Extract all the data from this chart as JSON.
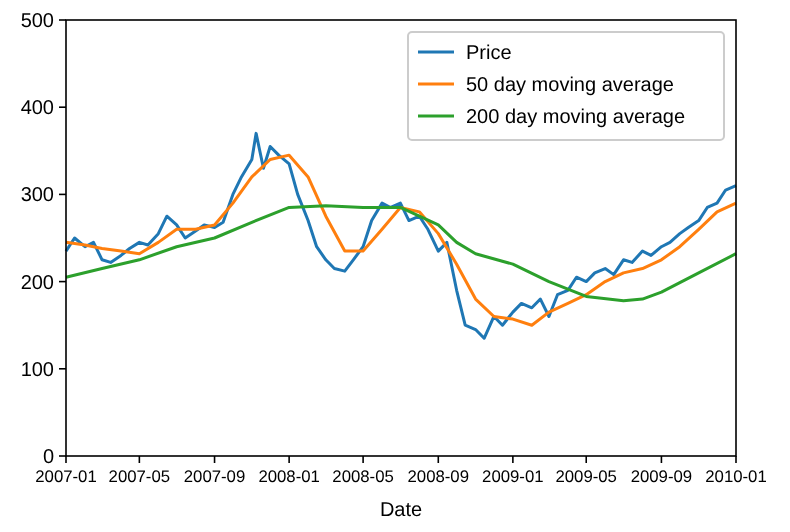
{
  "chart_data": {
    "type": "line",
    "xlabel": "Date",
    "xlim": [
      "2007-01",
      "2010-01"
    ],
    "xticks": [
      "2007-01",
      "2007-05",
      "2007-09",
      "2008-01",
      "2008-05",
      "2008-09",
      "2009-01",
      "2009-05",
      "2009-09",
      "2010-01"
    ],
    "ylim": [
      0,
      500
    ],
    "yticks": [
      0,
      100,
      200,
      300,
      400,
      500
    ],
    "legend": "top right",
    "grid": false,
    "series": [
      {
        "name": "Price",
        "color": "#1f77b4",
        "x": [
          "2007-01-01",
          "2007-01-15",
          "2007-02-01",
          "2007-02-15",
          "2007-03-01",
          "2007-03-15",
          "2007-04-01",
          "2007-04-15",
          "2007-05-01",
          "2007-05-15",
          "2007-06-01",
          "2007-06-15",
          "2007-07-01",
          "2007-07-15",
          "2007-08-01",
          "2007-08-15",
          "2007-09-01",
          "2007-09-15",
          "2007-10-01",
          "2007-10-15",
          "2007-11-01",
          "2007-11-08",
          "2007-11-20",
          "2007-12-01",
          "2007-12-15",
          "2008-01-01",
          "2008-01-15",
          "2008-02-01",
          "2008-02-15",
          "2008-03-01",
          "2008-03-15",
          "2008-04-01",
          "2008-04-15",
          "2008-05-01",
          "2008-05-15",
          "2008-06-01",
          "2008-06-15",
          "2008-07-01",
          "2008-07-15",
          "2008-08-01",
          "2008-08-15",
          "2008-09-01",
          "2008-09-15",
          "2008-10-01",
          "2008-10-15",
          "2008-11-01",
          "2008-11-15",
          "2008-12-01",
          "2008-12-15",
          "2009-01-01",
          "2009-01-15",
          "2009-02-01",
          "2009-02-15",
          "2009-03-01",
          "2009-03-15",
          "2009-04-01",
          "2009-04-15",
          "2009-05-01",
          "2009-05-15",
          "2009-06-01",
          "2009-06-15",
          "2009-07-01",
          "2009-07-15",
          "2009-08-01",
          "2009-08-15",
          "2009-09-01",
          "2009-09-15",
          "2009-10-01",
          "2009-10-15",
          "2009-11-01",
          "2009-11-15",
          "2009-12-01",
          "2009-12-15",
          "2010-01-01"
        ],
        "values": [
          235,
          250,
          240,
          245,
          225,
          222,
          230,
          238,
          245,
          242,
          255,
          275,
          265,
          250,
          258,
          265,
          262,
          268,
          300,
          320,
          340,
          370,
          330,
          355,
          345,
          335,
          300,
          270,
          240,
          225,
          215,
          212,
          225,
          240,
          270,
          290,
          285,
          290,
          270,
          275,
          260,
          235,
          245,
          190,
          150,
          145,
          135,
          160,
          150,
          165,
          175,
          170,
          180,
          160,
          185,
          190,
          205,
          200,
          210,
          215,
          208,
          225,
          222,
          235,
          230,
          240,
          245,
          255,
          262,
          270,
          285,
          290,
          305,
          310
        ]
      },
      {
        "name": "50 day moving average",
        "color": "#ff7f0e",
        "x": [
          "2007-01-01",
          "2007-02-01",
          "2007-03-01",
          "2007-04-01",
          "2007-05-01",
          "2007-06-01",
          "2007-07-01",
          "2007-08-01",
          "2007-09-01",
          "2007-10-01",
          "2007-11-01",
          "2007-12-01",
          "2008-01-01",
          "2008-02-01",
          "2008-03-01",
          "2008-04-01",
          "2008-05-01",
          "2008-06-01",
          "2008-07-01",
          "2008-08-01",
          "2008-09-01",
          "2008-10-01",
          "2008-11-01",
          "2008-12-01",
          "2009-01-01",
          "2009-02-01",
          "2009-03-01",
          "2009-04-01",
          "2009-05-01",
          "2009-06-01",
          "2009-07-01",
          "2009-08-01",
          "2009-09-01",
          "2009-10-01",
          "2009-11-01",
          "2009-12-01",
          "2010-01-01"
        ],
        "values": [
          245,
          242,
          238,
          235,
          232,
          245,
          260,
          260,
          265,
          290,
          320,
          340,
          345,
          320,
          275,
          235,
          235,
          260,
          285,
          280,
          255,
          220,
          180,
          160,
          157,
          150,
          165,
          175,
          185,
          200,
          210,
          215,
          225,
          240,
          260,
          280,
          290
        ]
      },
      {
        "name": "200 day moving average",
        "color": "#2ca02c",
        "x": [
          "2007-01-01",
          "2007-03-01",
          "2007-05-01",
          "2007-07-01",
          "2007-09-01",
          "2007-11-01",
          "2008-01-01",
          "2008-03-01",
          "2008-05-01",
          "2008-07-01",
          "2008-09-01",
          "2008-10-01",
          "2008-11-01",
          "2009-01-01",
          "2009-03-01",
          "2009-05-01",
          "2009-07-01",
          "2009-08-01",
          "2009-09-01",
          "2009-11-01",
          "2010-01-01"
        ],
        "values": [
          205,
          215,
          225,
          240,
          250,
          268,
          285,
          287,
          285,
          285,
          265,
          245,
          232,
          220,
          200,
          183,
          178,
          180,
          188,
          210,
          232
        ]
      }
    ]
  }
}
